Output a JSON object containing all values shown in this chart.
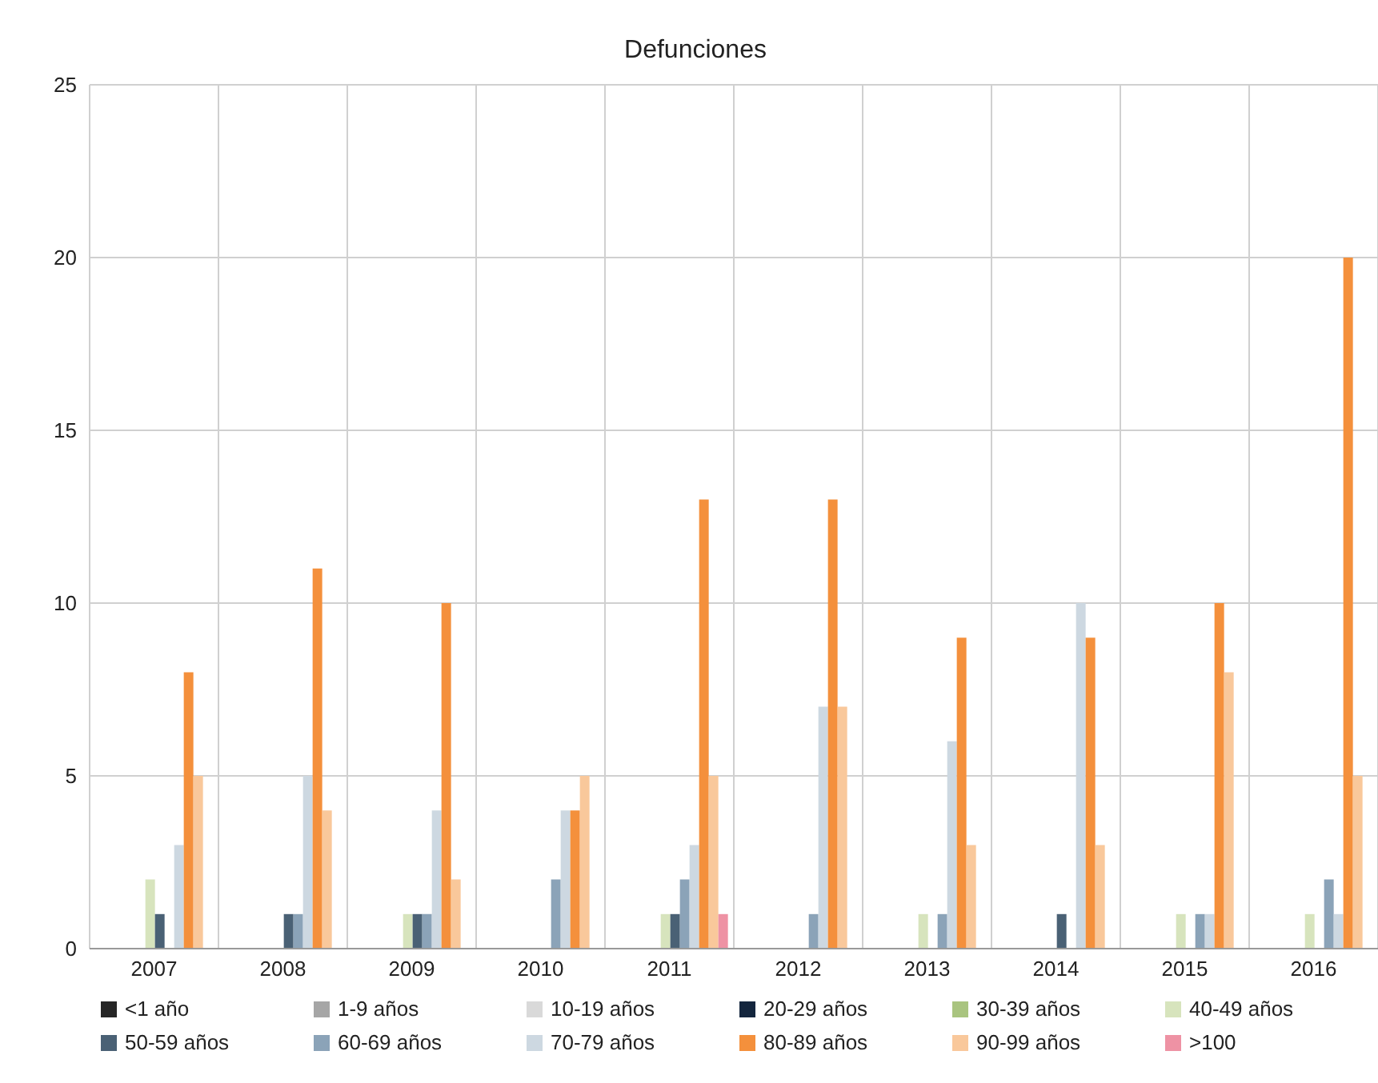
{
  "chart_data": {
    "type": "bar",
    "title": "Defunciones",
    "categories": [
      "2007",
      "2008",
      "2009",
      "2010",
      "2011",
      "2012",
      "2013",
      "2014",
      "2015",
      "2016"
    ],
    "series": [
      {
        "name": "<1 año",
        "color": "#262626",
        "values": [
          0,
          0,
          0,
          0,
          0,
          0,
          0,
          0,
          0,
          0
        ]
      },
      {
        "name": "1-9 años",
        "color": "#a6a6a6",
        "values": [
          0,
          0,
          0,
          0,
          0,
          0,
          0,
          0,
          0,
          0
        ]
      },
      {
        "name": "10-19 años",
        "color": "#d9d9d9",
        "values": [
          0,
          0,
          0,
          0,
          0,
          0,
          0,
          0,
          0,
          0
        ]
      },
      {
        "name": "20-29 años",
        "color": "#14263e",
        "values": [
          0,
          0,
          0,
          0,
          0,
          0,
          0,
          0,
          0,
          0
        ]
      },
      {
        "name": "30-39 años",
        "color": "#a9c47f",
        "values": [
          0,
          0,
          0,
          0,
          0,
          0,
          0,
          0,
          0,
          0
        ]
      },
      {
        "name": "40-49 años",
        "color": "#d7e4bd",
        "values": [
          2,
          0,
          1,
          0,
          1,
          0,
          1,
          0,
          1,
          1
        ]
      },
      {
        "name": "50-59 años",
        "color": "#4a6175",
        "values": [
          1,
          1,
          1,
          0,
          1,
          0,
          0,
          1,
          0,
          0
        ]
      },
      {
        "name": "60-69 años",
        "color": "#8ba3b8",
        "values": [
          0,
          1,
          1,
          2,
          2,
          1,
          1,
          0,
          1,
          2
        ]
      },
      {
        "name": "70-79 años",
        "color": "#cdd8e1",
        "values": [
          3,
          5,
          4,
          4,
          3,
          7,
          6,
          10,
          1,
          1
        ]
      },
      {
        "name": "80-89 años",
        "color": "#f4903c",
        "values": [
          8,
          11,
          10,
          4,
          13,
          13,
          9,
          9,
          10,
          20
        ]
      },
      {
        "name": "90-99 años",
        "color": "#f9c89b",
        "values": [
          5,
          4,
          2,
          5,
          5,
          7,
          3,
          3,
          8,
          5
        ]
      },
      {
        "name": ">100",
        "color": "#ee92a4",
        "values": [
          0,
          0,
          0,
          0,
          1,
          0,
          0,
          0,
          0,
          0
        ]
      }
    ],
    "ylim": [
      0,
      25
    ],
    "yticks": [
      0,
      5,
      10,
      15,
      20,
      25
    ],
    "grid": true,
    "legend": "bottom"
  }
}
